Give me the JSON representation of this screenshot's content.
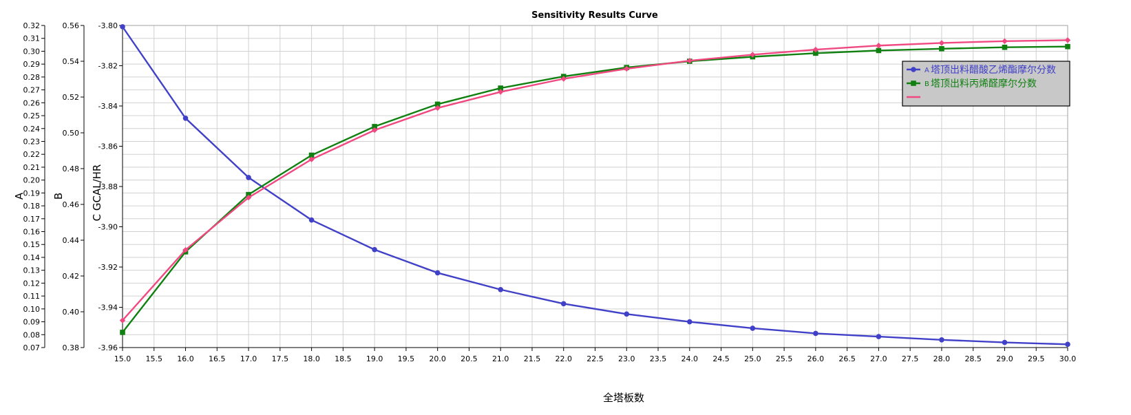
{
  "chart_data": {
    "type": "line",
    "title": "Sensitivity Results Curve",
    "xlabel": "全塔板数",
    "x": [
      15.0,
      16.0,
      17.0,
      18.0,
      19.0,
      20.0,
      21.0,
      22.0,
      23.0,
      24.0,
      25.0,
      26.0,
      27.0,
      28.0,
      29.0,
      30.0
    ],
    "xlim": [
      15.0,
      30.0
    ],
    "x_ticks": [
      "15.0",
      "15.5",
      "16.0",
      "16.5",
      "17.0",
      "17.5",
      "18.0",
      "18.5",
      "19.0",
      "19.5",
      "20.0",
      "20.5",
      "21.0",
      "21.5",
      "22.0",
      "22.5",
      "23.0",
      "23.5",
      "24.0",
      "24.5",
      "25.0",
      "25.5",
      "26.0",
      "26.5",
      "27.0",
      "27.5",
      "28.0",
      "28.5",
      "29.0",
      "29.5",
      "30.0"
    ],
    "axes": {
      "A": {
        "label": "A",
        "ylim": [
          0.07,
          0.32
        ],
        "ticks": [
          "0.07",
          "0.08",
          "0.09",
          "0.10",
          "0.11",
          "0.12",
          "0.13",
          "0.14",
          "0.15",
          "0.16",
          "0.17",
          "0.18",
          "0.19",
          "0.20",
          "0.21",
          "0.22",
          "0.23",
          "0.24",
          "0.25",
          "0.26",
          "0.27",
          "0.28",
          "0.29",
          "0.30",
          "0.31",
          "0.32"
        ]
      },
      "B": {
        "label": "B",
        "ylim": [
          0.38,
          0.56
        ],
        "ticks": [
          "0.38",
          "0.40",
          "0.42",
          "0.44",
          "0.46",
          "0.48",
          "0.50",
          "0.52",
          "0.54",
          "0.56"
        ]
      },
      "C": {
        "label": "C GCAL/HR",
        "ylim": [
          -3.96,
          -3.8
        ],
        "ticks": [
          "-3.80",
          "-3.82",
          "-3.84",
          "-3.86",
          "-3.88",
          "-3.90",
          "-3.92",
          "-3.94",
          "-3.96"
        ]
      }
    },
    "series": [
      {
        "name": "塔顶出料醋酸乙烯酯摩尔分数",
        "legend_prefix": "A",
        "axis": "A",
        "color": "#4040c8",
        "marker": "circle",
        "values": [
          0.319,
          0.248,
          0.202,
          0.169,
          0.146,
          0.128,
          0.115,
          0.104,
          0.096,
          0.09,
          0.085,
          0.081,
          0.0785,
          0.076,
          0.074,
          0.0725
        ]
      },
      {
        "name": "塔顶出料丙烯醛摩尔分数",
        "legend_prefix": "B",
        "axis": "B",
        "color": "#108010",
        "marker": "square",
        "values": [
          0.3885,
          0.4335,
          0.4655,
          0.4875,
          0.5035,
          0.516,
          0.525,
          0.5315,
          0.5365,
          0.54,
          0.5425,
          0.5445,
          0.546,
          0.547,
          0.5478,
          0.5482
        ]
      },
      {
        "name": "",
        "legend_prefix": "",
        "axis": "C",
        "color": "#f04880",
        "marker": "diamond",
        "values": [
          -3.9465,
          -3.9115,
          -3.8855,
          -3.8665,
          -3.852,
          -3.841,
          -3.833,
          -3.8265,
          -3.8215,
          -3.8175,
          -3.8145,
          -3.812,
          -3.81,
          -3.8087,
          -3.8078,
          -3.8073
        ]
      }
    ],
    "grid": true,
    "legend_position": "top-right"
  }
}
